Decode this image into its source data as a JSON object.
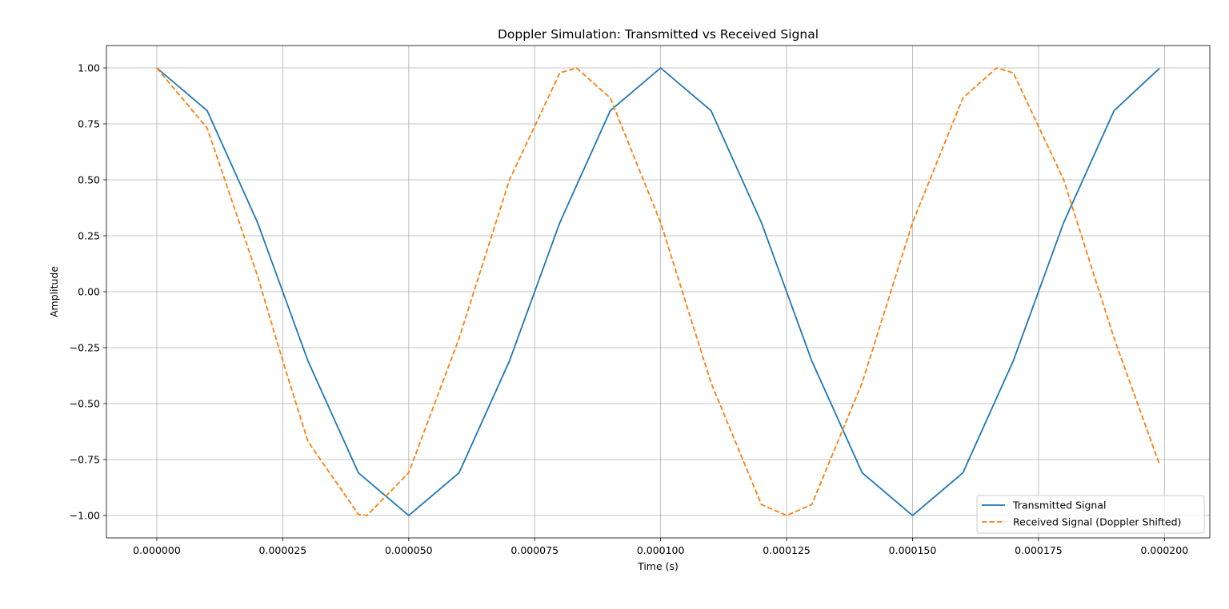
{
  "chart_data": {
    "type": "line",
    "title": "Doppler Simulation: Transmitted vs Received Signal",
    "xlabel": "Time (s)",
    "ylabel": "Amplitude",
    "xlim": [
      -1e-05,
      0.000209
    ],
    "ylim": [
      -1.1,
      1.1
    ],
    "x_ticks": [
      0,
      2.5e-05,
      5e-05,
      7.5e-05,
      0.0001,
      0.000125,
      0.00015,
      0.000175,
      0.0002
    ],
    "x_tick_labels": [
      "0.000000",
      "0.000025",
      "0.000050",
      "0.000075",
      "0.000100",
      "0.000125",
      "0.000150",
      "0.000175",
      "0.000200"
    ],
    "y_ticks": [
      1.0,
      0.75,
      0.5,
      0.25,
      0.0,
      -0.25,
      -0.5,
      -0.75,
      -1.0
    ],
    "y_tick_labels": [
      "1.00",
      "0.75",
      "0.50",
      "0.25",
      "0.00",
      "−0.25",
      "−0.50",
      "−0.75",
      "−1.00"
    ],
    "grid": true,
    "legend_position": "lower-right",
    "series": [
      {
        "name": "Transmitted Signal",
        "style": "solid",
        "color": "#1f77b4",
        "x": [
          0,
          1e-05,
          2e-05,
          2.5e-05,
          3e-05,
          4e-05,
          5e-05,
          6e-05,
          7e-05,
          7.5e-05,
          8e-05,
          9e-05,
          0.0001,
          0.00011,
          0.00012,
          0.000125,
          0.00013,
          0.00014,
          0.00015,
          0.00016,
          0.00017,
          0.000175,
          0.00018,
          0.00019,
          0.000199
        ],
        "y": [
          1.0,
          0.809,
          0.309,
          0.0,
          -0.309,
          -0.809,
          -1.0,
          -0.809,
          -0.309,
          0.0,
          0.309,
          0.809,
          1.0,
          0.809,
          0.309,
          0.0,
          -0.309,
          -0.809,
          -1.0,
          -0.809,
          -0.309,
          0.0,
          0.309,
          0.809,
          0.998
        ]
      },
      {
        "name": "Received Signal (Doppler Shifted)",
        "style": "dashed",
        "color": "#ff7f0e",
        "x": [
          0,
          1e-05,
          2e-05,
          2.5e-05,
          3e-05,
          4e-05,
          4.17e-05,
          5e-05,
          6e-05,
          7e-05,
          8e-05,
          8.33e-05,
          9e-05,
          0.0001,
          0.00011,
          0.00012,
          0.000125,
          0.00013,
          0.00014,
          0.00015,
          0.00016,
          0.0001667,
          0.00017,
          0.00018,
          0.00019,
          0.000199
        ],
        "y": [
          1.0,
          0.731,
          0.07,
          -0.309,
          -0.669,
          -0.995,
          -1.0,
          -0.809,
          -0.208,
          0.5,
          0.978,
          1.0,
          0.866,
          0.309,
          -0.407,
          -0.951,
          -1.0,
          -0.951,
          -0.407,
          0.309,
          0.866,
          1.0,
          0.978,
          0.5,
          -0.208,
          -0.771
        ]
      }
    ]
  }
}
